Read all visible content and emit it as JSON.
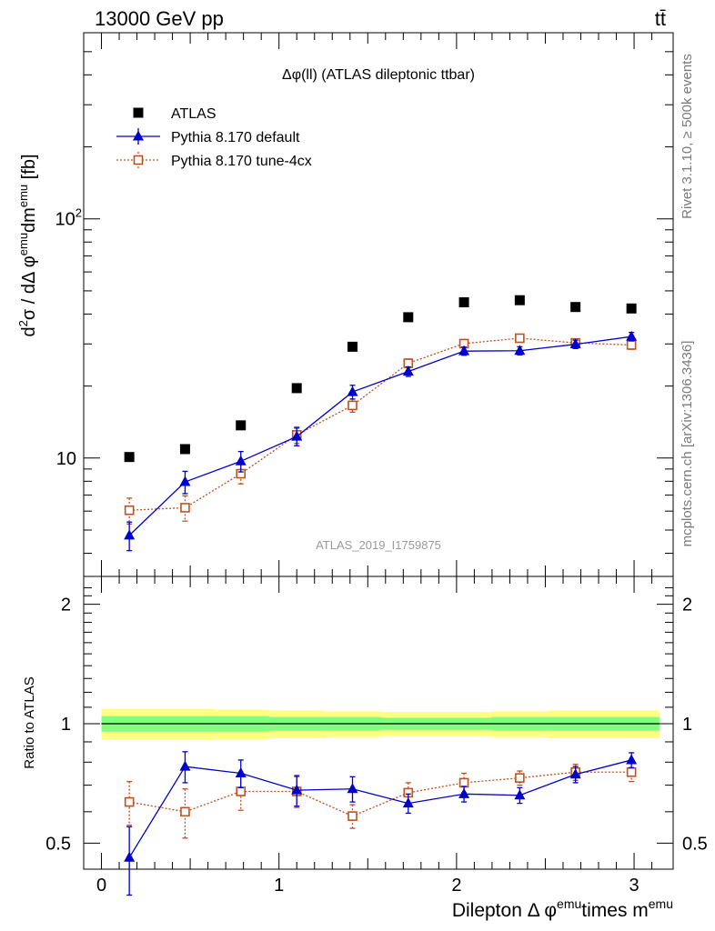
{
  "header": {
    "energy_label": "13000 GeV pp",
    "process_label": "tt̄",
    "rivet_label": "Rivet 3.1.10, ≥ 500k events",
    "mcplots_label": "mcplots.cern.ch [arXiv:1306.3436]",
    "analysis_id": "ATLAS_2019_I1759875"
  },
  "chart_data": [
    {
      "type": "scatter",
      "panel": "main",
      "title": "Δφ(ll) (ATLAS dileptonic ttbar)",
      "ylabel": {
        "base": "d",
        "sup1": "2",
        "mid": "σ / dΔ φ",
        "sup2": "emu",
        "mid2": "dm",
        "sup3": "emu",
        "tail": " [fb]"
      },
      "yscale": "log",
      "ylim": [
        3.2,
        600
      ],
      "xlim": [
        -0.1,
        3.22
      ],
      "yticks": [
        {
          "value": 10,
          "label": "10"
        },
        {
          "value": 100,
          "label": "10",
          "sup": "2"
        }
      ],
      "legend_placement": "top-left",
      "x": [
        0.157,
        0.471,
        0.785,
        1.1,
        1.414,
        1.728,
        2.042,
        2.356,
        2.67,
        2.985
      ],
      "series": [
        {
          "name": "ATLAS",
          "color": "#000000",
          "marker": "filled-square",
          "values": [
            10.1,
            10.9,
            13.7,
            19.6,
            29.2,
            38.8,
            44.8,
            45.7,
            42.8,
            42.2
          ]
        },
        {
          "name": "Pythia 8.170 default",
          "color": "#0000cc",
          "marker": "filled-triangle",
          "line": "solid",
          "values": [
            4.75,
            7.95,
            9.7,
            12.3,
            18.9,
            23.0,
            28.0,
            28.1,
            29.9,
            32.2
          ],
          "err_low": [
            0.65,
            0.85,
            0.95,
            1.05,
            1.25,
            1.05,
            1.1,
            1.1,
            1.2,
            1.3
          ],
          "err_high": [
            0.65,
            0.85,
            0.95,
            1.05,
            1.25,
            1.05,
            1.1,
            1.1,
            1.2,
            1.3
          ]
        },
        {
          "name": "Pythia 8.170 tune-4cx",
          "color": "#c0501f",
          "marker": "open-square",
          "line": "dotted",
          "values": [
            6.05,
            6.2,
            8.6,
            12.5,
            16.6,
            24.9,
            30.1,
            31.7,
            30.3,
            29.7
          ],
          "err_low": [
            0.75,
            0.75,
            0.8,
            1.0,
            1.05,
            1.05,
            1.05,
            1.05,
            1.1,
            1.2
          ],
          "err_high": [
            0.75,
            0.75,
            0.8,
            1.0,
            1.05,
            1.05,
            1.05,
            1.05,
            1.1,
            1.2
          ]
        }
      ]
    },
    {
      "type": "scatter",
      "panel": "ratio",
      "ylabel": "Ratio to ATLAS",
      "xlabel": {
        "pre": "Dilepton Δ φ",
        "sup1": "emu",
        "mid": "times m",
        "sup2": "emu"
      },
      "ylim": [
        0.43,
        2.35
      ],
      "xlim": [
        -0.1,
        3.22
      ],
      "yscale": "log",
      "yticks": [
        {
          "value": 0.5,
          "label": "0.5"
        },
        {
          "value": 1,
          "label": "1"
        },
        {
          "value": 2,
          "label": "2"
        }
      ],
      "xticks": [
        {
          "value": 0,
          "label": "0"
        },
        {
          "value": 1,
          "label": "1"
        },
        {
          "value": 2,
          "label": "2"
        },
        {
          "value": 3,
          "label": "3"
        }
      ],
      "band": {
        "inner_color": "#80ff80",
        "outer_color": "#ffff80",
        "inner": [
          0.045,
          0.045,
          0.045,
          0.04,
          0.04,
          0.035,
          0.035,
          0.04,
          0.04,
          0.04
        ],
        "outer": [
          0.09,
          0.09,
          0.085,
          0.08,
          0.075,
          0.07,
          0.07,
          0.075,
          0.08,
          0.08
        ]
      },
      "x": [
        0.157,
        0.471,
        0.785,
        1.1,
        1.414,
        1.728,
        2.042,
        2.356,
        2.67,
        2.985
      ],
      "series": [
        {
          "name": "Pythia 8.170 default",
          "color": "#0000cc",
          "marker": "filled-triangle",
          "line": "solid",
          "values": [
            0.46,
            0.78,
            0.75,
            0.68,
            0.685,
            0.63,
            0.665,
            0.66,
            0.745,
            0.81
          ],
          "err_low": [
            0.09,
            0.07,
            0.06,
            0.06,
            0.05,
            0.035,
            0.03,
            0.03,
            0.035,
            0.035
          ],
          "err_high": [
            0.09,
            0.07,
            0.06,
            0.06,
            0.05,
            0.035,
            0.03,
            0.03,
            0.035,
            0.035
          ]
        },
        {
          "name": "Pythia 8.170 tune-4cx",
          "color": "#c0501f",
          "marker": "open-square",
          "line": "dotted",
          "values": [
            0.635,
            0.6,
            0.675,
            0.675,
            0.585,
            0.67,
            0.71,
            0.73,
            0.755,
            0.755
          ],
          "err_low": [
            0.08,
            0.085,
            0.07,
            0.06,
            0.04,
            0.04,
            0.04,
            0.03,
            0.035,
            0.04
          ],
          "err_high": [
            0.08,
            0.085,
            0.07,
            0.06,
            0.04,
            0.04,
            0.04,
            0.03,
            0.035,
            0.04
          ]
        }
      ]
    }
  ]
}
